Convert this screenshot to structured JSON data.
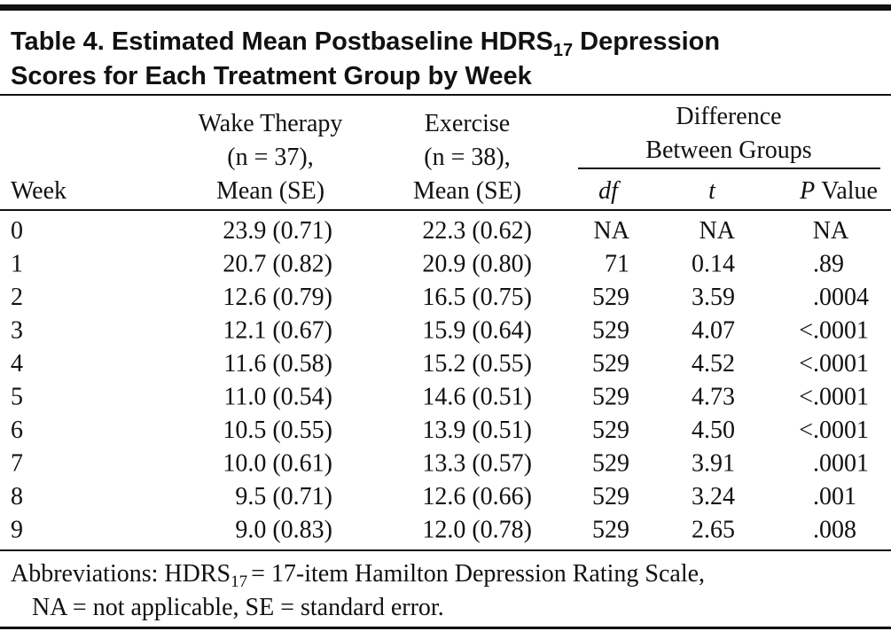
{
  "title": {
    "line_1": "Table 4. Estimated Mean Postbaseline HDRS",
    "subscript": "17",
    "line_1_end": "Depression",
    "line_2": "Scores for Each Treatment Group by Week"
  },
  "table": {
    "header": {
      "week": "Week",
      "wake_therapy": [
        "Wake Therapy",
        "(n = 37),",
        "Mean (SE)"
      ],
      "exercise": [
        "Exercise",
        "(n = 38),",
        "Mean (SE)"
      ],
      "difference": [
        "Difference",
        "Between Groups"
      ],
      "df": "df",
      "t": "t",
      "p_value": {
        "italic": "P",
        "text": "Value"
      }
    },
    "rows": [
      [
        "0",
        "23.9 (0.71)",
        "22.3 (0.62)",
        "NA",
        "NA",
        "NA"
      ],
      [
        "1",
        "20.7 (0.82)",
        "20.9 (0.80)",
        "71",
        "0.14",
        ".89"
      ],
      [
        "2",
        "12.6 (0.79)",
        "16.5 (0.75)",
        "529",
        "3.59",
        ".0004"
      ],
      [
        "3",
        "12.1 (0.67)",
        "15.9 (0.64)",
        "529",
        "4.07",
        "<.0001"
      ],
      [
        "4",
        "11.6 (0.58)",
        "15.2 (0.55)",
        "529",
        "4.52",
        "<.0001"
      ],
      [
        "5",
        "11.0 (0.54)",
        "14.6 (0.51)",
        "529",
        "4.73",
        "<.0001"
      ],
      [
        "6",
        "10.5 (0.55)",
        "13.9 (0.51)",
        "529",
        "4.50",
        "<.0001"
      ],
      [
        "7",
        "10.0 (0.61)",
        "13.3 (0.57)",
        "529",
        "3.91",
        ".0001"
      ],
      [
        "8",
        "9.5 (0.71)",
        "12.6 (0.66)",
        "529",
        "3.24",
        ".001"
      ],
      [
        "9",
        "9.0 (0.83)",
        "12.0 (0.78)",
        "529",
        "2.65",
        ".008"
      ]
    ]
  },
  "footnote": {
    "line_1": "Abbreviations: HDRS",
    "subscript": "17",
    "line_1_end": "= 17-item Hamilton Depression Rating Scale,",
    "line_2": "NA = not applicable, SE = standard error."
  }
}
